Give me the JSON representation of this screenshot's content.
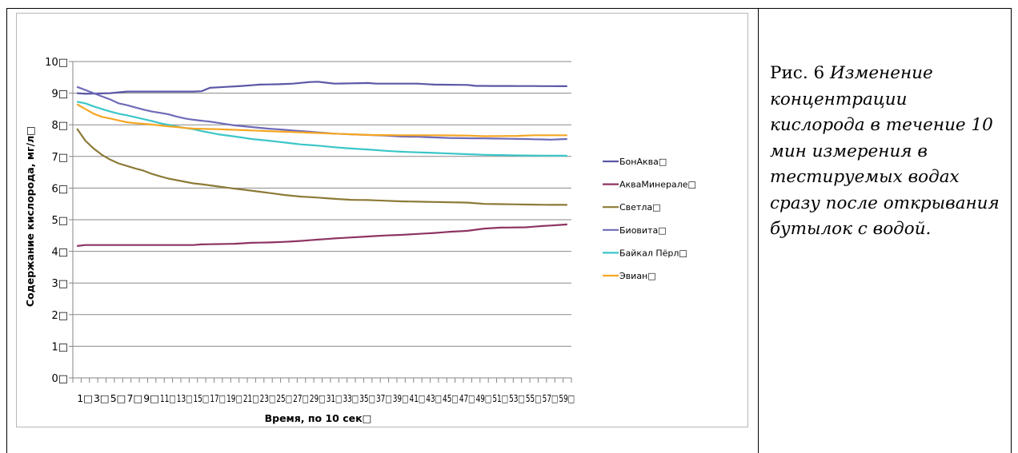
{
  "caption": {
    "lead": "Рис. 6 ",
    "text": "Изменение концентрации кислорода в течение 10 мин измерения в тестируемых водах сразу после открывания бутылок с водой."
  },
  "chart_data": {
    "type": "line",
    "title": "",
    "xlabel": "Время, по 10 сек",
    "ylabel": "Содержание кислорода, мг/л",
    "ylim": [
      0,
      10
    ],
    "yticks": [
      "0",
      "1",
      "2",
      "3",
      "4",
      "5",
      "6",
      "7",
      "8",
      "9",
      "10"
    ],
    "x_count": 60,
    "x_tick_labels": [
      "1",
      "3",
      "5",
      "7",
      "9",
      "11",
      "13",
      "15",
      "17",
      "19",
      "21",
      "23",
      "25",
      "27",
      "29",
      "31",
      "33",
      "35",
      "37",
      "39",
      "41",
      "43",
      "45",
      "47",
      "49",
      "51",
      "53",
      "55",
      "57",
      "59"
    ],
    "grid": true,
    "legend_position": "right",
    "series": [
      {
        "name": "БонАква",
        "color": "#5b57a5",
        "keyframes": [
          [
            1,
            9.0
          ],
          [
            2,
            8.98
          ],
          [
            5,
            9.0
          ],
          [
            7,
            9.05
          ],
          [
            15,
            9.05
          ],
          [
            16,
            9.06
          ],
          [
            17,
            9.17
          ],
          [
            19,
            9.2
          ],
          [
            21,
            9.23
          ],
          [
            23,
            9.27
          ],
          [
            25,
            9.28
          ],
          [
            27,
            9.3
          ],
          [
            29,
            9.35
          ],
          [
            30,
            9.36
          ],
          [
            32,
            9.3
          ],
          [
            36,
            9.32
          ],
          [
            37,
            9.3
          ],
          [
            42,
            9.3
          ],
          [
            44,
            9.27
          ],
          [
            48,
            9.26
          ],
          [
            49,
            9.23
          ],
          [
            60,
            9.22
          ]
        ]
      },
      {
        "name": "АкваМинерале",
        "color": "#8e3462",
        "keyframes": [
          [
            1,
            4.17
          ],
          [
            2,
            4.2
          ],
          [
            15,
            4.2
          ],
          [
            16,
            4.22
          ],
          [
            20,
            4.24
          ],
          [
            22,
            4.27
          ],
          [
            24,
            4.28
          ],
          [
            26,
            4.3
          ],
          [
            28,
            4.33
          ],
          [
            30,
            4.37
          ],
          [
            32,
            4.41
          ],
          [
            34,
            4.44
          ],
          [
            36,
            4.47
          ],
          [
            38,
            4.5
          ],
          [
            40,
            4.52
          ],
          [
            42,
            4.55
          ],
          [
            44,
            4.58
          ],
          [
            46,
            4.62
          ],
          [
            48,
            4.65
          ],
          [
            50,
            4.72
          ],
          [
            52,
            4.75
          ],
          [
            55,
            4.76
          ],
          [
            57,
            4.8
          ],
          [
            60,
            4.85
          ]
        ]
      },
      {
        "name": "Светла",
        "color": "#8c7a37",
        "keyframes": [
          [
            1,
            7.88
          ],
          [
            2,
            7.5
          ],
          [
            3,
            7.25
          ],
          [
            4,
            7.05
          ],
          [
            5,
            6.9
          ],
          [
            6,
            6.78
          ],
          [
            7,
            6.7
          ],
          [
            8,
            6.62
          ],
          [
            9,
            6.55
          ],
          [
            10,
            6.45
          ],
          [
            11,
            6.37
          ],
          [
            12,
            6.3
          ],
          [
            13,
            6.25
          ],
          [
            14,
            6.2
          ],
          [
            15,
            6.15
          ],
          [
            16,
            6.12
          ],
          [
            18,
            6.05
          ],
          [
            20,
            5.98
          ],
          [
            22,
            5.92
          ],
          [
            24,
            5.85
          ],
          [
            26,
            5.78
          ],
          [
            28,
            5.73
          ],
          [
            30,
            5.7
          ],
          [
            32,
            5.66
          ],
          [
            34,
            5.63
          ],
          [
            36,
            5.62
          ],
          [
            38,
            5.6
          ],
          [
            40,
            5.58
          ],
          [
            42,
            5.57
          ],
          [
            44,
            5.56
          ],
          [
            46,
            5.55
          ],
          [
            48,
            5.54
          ],
          [
            50,
            5.5
          ],
          [
            55,
            5.48
          ],
          [
            58,
            5.47
          ],
          [
            60,
            5.47
          ]
        ]
      },
      {
        "name": "Биовита",
        "color": "#6e6ab8",
        "keyframes": [
          [
            1,
            9.2
          ],
          [
            2,
            9.1
          ],
          [
            3,
            9.0
          ],
          [
            4,
            8.9
          ],
          [
            5,
            8.8
          ],
          [
            6,
            8.68
          ],
          [
            7,
            8.62
          ],
          [
            8,
            8.55
          ],
          [
            9,
            8.48
          ],
          [
            10,
            8.42
          ],
          [
            11,
            8.38
          ],
          [
            12,
            8.33
          ],
          [
            13,
            8.26
          ],
          [
            14,
            8.2
          ],
          [
            15,
            8.16
          ],
          [
            16,
            8.13
          ],
          [
            17,
            8.1
          ],
          [
            18,
            8.06
          ],
          [
            19,
            8.02
          ],
          [
            20,
            7.98
          ],
          [
            22,
            7.93
          ],
          [
            24,
            7.88
          ],
          [
            26,
            7.84
          ],
          [
            28,
            7.8
          ],
          [
            30,
            7.76
          ],
          [
            32,
            7.72
          ],
          [
            34,
            7.7
          ],
          [
            36,
            7.68
          ],
          [
            38,
            7.66
          ],
          [
            40,
            7.63
          ],
          [
            42,
            7.62
          ],
          [
            44,
            7.6
          ],
          [
            46,
            7.58
          ],
          [
            50,
            7.57
          ],
          [
            55,
            7.55
          ],
          [
            58,
            7.53
          ],
          [
            60,
            7.55
          ]
        ]
      },
      {
        "name": "Байкал Пёрл",
        "color": "#3cc6c8",
        "keyframes": [
          [
            1,
            8.73
          ],
          [
            2,
            8.68
          ],
          [
            3,
            8.58
          ],
          [
            4,
            8.5
          ],
          [
            5,
            8.42
          ],
          [
            6,
            8.35
          ],
          [
            7,
            8.3
          ],
          [
            8,
            8.24
          ],
          [
            9,
            8.18
          ],
          [
            10,
            8.12
          ],
          [
            11,
            8.05
          ],
          [
            12,
            8.0
          ],
          [
            13,
            7.95
          ],
          [
            14,
            7.9
          ],
          [
            15,
            7.86
          ],
          [
            16,
            7.8
          ],
          [
            17,
            7.75
          ],
          [
            18,
            7.7
          ],
          [
            20,
            7.63
          ],
          [
            22,
            7.55
          ],
          [
            24,
            7.5
          ],
          [
            26,
            7.44
          ],
          [
            28,
            7.38
          ],
          [
            30,
            7.34
          ],
          [
            32,
            7.29
          ],
          [
            34,
            7.25
          ],
          [
            36,
            7.22
          ],
          [
            38,
            7.18
          ],
          [
            40,
            7.15
          ],
          [
            42,
            7.13
          ],
          [
            44,
            7.11
          ],
          [
            46,
            7.09
          ],
          [
            48,
            7.07
          ],
          [
            50,
            7.05
          ],
          [
            55,
            7.03
          ],
          [
            60,
            7.02
          ]
        ]
      },
      {
        "name": "Эвиан",
        "color": "#f5a623",
        "keyframes": [
          [
            1,
            8.65
          ],
          [
            2,
            8.5
          ],
          [
            3,
            8.35
          ],
          [
            4,
            8.25
          ],
          [
            5,
            8.2
          ],
          [
            6,
            8.14
          ],
          [
            7,
            8.08
          ],
          [
            8,
            8.05
          ],
          [
            9,
            8.03
          ],
          [
            10,
            8.01
          ],
          [
            11,
            7.98
          ],
          [
            12,
            7.95
          ],
          [
            13,
            7.93
          ],
          [
            14,
            7.9
          ],
          [
            15,
            7.88
          ],
          [
            18,
            7.86
          ],
          [
            20,
            7.84
          ],
          [
            22,
            7.82
          ],
          [
            24,
            7.8
          ],
          [
            26,
            7.78
          ],
          [
            28,
            7.76
          ],
          [
            30,
            7.74
          ],
          [
            32,
            7.72
          ],
          [
            34,
            7.7
          ],
          [
            36,
            7.68
          ],
          [
            40,
            7.67
          ],
          [
            44,
            7.67
          ],
          [
            48,
            7.66
          ],
          [
            50,
            7.64
          ],
          [
            54,
            7.65
          ],
          [
            56,
            7.67
          ],
          [
            60,
            7.67
          ]
        ]
      }
    ]
  }
}
